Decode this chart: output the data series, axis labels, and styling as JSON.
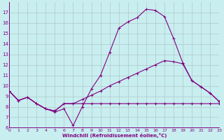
{
  "xlabel": "Windchill (Refroidissement éolien,°C)",
  "bg_color": "#c8eef0",
  "line_color": "#800080",
  "grid_color": "#b0c8c8",
  "xlim": [
    0,
    23
  ],
  "ylim": [
    6,
    18
  ],
  "xticks": [
    0,
    1,
    2,
    3,
    4,
    5,
    6,
    7,
    8,
    9,
    10,
    11,
    12,
    13,
    14,
    15,
    16,
    17,
    18,
    19,
    20,
    21,
    22,
    23
  ],
  "yticks": [
    6,
    7,
    8,
    9,
    10,
    11,
    12,
    13,
    14,
    15,
    16,
    17
  ],
  "s1_x": [
    0,
    1,
    2,
    3,
    4,
    5,
    6,
    7,
    8,
    9,
    10,
    11,
    12,
    13,
    14,
    15,
    16,
    17,
    18,
    19,
    20,
    21,
    22,
    23
  ],
  "s1_y": [
    9.5,
    8.6,
    8.9,
    8.3,
    7.8,
    7.5,
    7.8,
    6.2,
    8.0,
    9.7,
    11.0,
    13.2,
    15.5,
    16.1,
    16.5,
    17.3,
    17.2,
    16.6,
    14.5,
    12.2,
    10.5,
    9.9,
    9.3,
    8.5
  ],
  "s2_x": [
    0,
    1,
    2,
    3,
    4,
    5,
    6,
    7,
    8,
    9,
    10,
    11,
    12,
    13,
    14,
    15,
    16,
    17,
    18,
    19,
    20,
    21,
    22,
    23
  ],
  "s2_y": [
    9.5,
    8.6,
    8.9,
    8.3,
    7.8,
    7.6,
    8.3,
    8.3,
    8.3,
    8.3,
    8.3,
    8.3,
    8.3,
    8.3,
    8.3,
    8.3,
    8.3,
    8.3,
    8.3,
    8.3,
    8.3,
    8.3,
    8.3,
    8.3
  ],
  "s3_x": [
    0,
    1,
    2,
    3,
    4,
    5,
    6,
    7,
    8,
    9,
    10,
    11,
    12,
    13,
    14,
    15,
    16,
    17,
    18,
    19,
    20,
    21,
    22,
    23
  ],
  "s3_y": [
    9.5,
    8.6,
    8.9,
    8.3,
    7.8,
    7.6,
    8.3,
    8.3,
    8.7,
    9.1,
    9.5,
    10.0,
    10.4,
    10.8,
    11.2,
    11.6,
    12.0,
    12.4,
    12.3,
    12.1,
    10.5,
    9.9,
    9.3,
    8.5
  ]
}
